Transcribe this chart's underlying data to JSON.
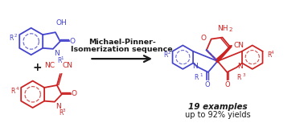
{
  "background_color": "#ffffff",
  "blue_color": "#4444cc",
  "red_color": "#cc2222",
  "black_color": "#1a1a1a",
  "arrow_text_line1": "Michael-Pinner-",
  "arrow_text_line2": "Isomerization sequence",
  "result_text_line1": "19 examples",
  "result_text_line2": "up to 92% yields",
  "fig_width": 3.78,
  "fig_height": 1.58,
  "dpi": 100
}
